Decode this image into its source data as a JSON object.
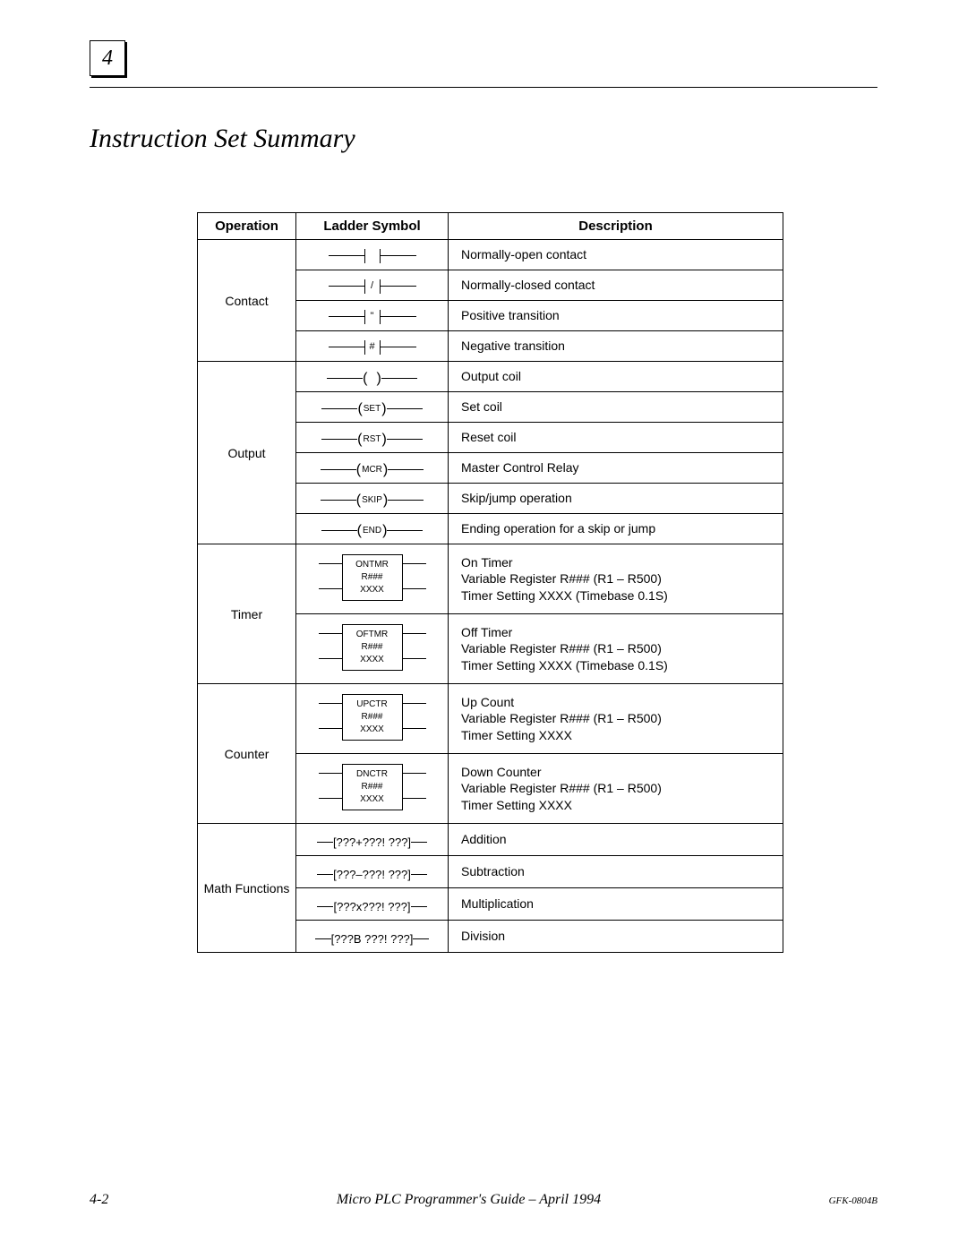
{
  "chapter_number": "4",
  "title": "Instruction Set Summary",
  "columns": [
    "Operation",
    "Ladder Symbol",
    "Description"
  ],
  "groups": [
    {
      "operation": "Contact",
      "rows": [
        {
          "kind": "contact",
          "inner": "",
          "desc": "Normally-open contact"
        },
        {
          "kind": "contact",
          "inner": "/",
          "desc": "Normally-closed contact"
        },
        {
          "kind": "contact",
          "inner": "\"",
          "desc": "Positive transition"
        },
        {
          "kind": "contact",
          "inner": "#",
          "desc": "Negative transition"
        }
      ]
    },
    {
      "operation": "Output",
      "rows": [
        {
          "kind": "coil",
          "inner": " ",
          "desc": "Output coil"
        },
        {
          "kind": "coil",
          "inner": "SET",
          "desc": "Set coil"
        },
        {
          "kind": "coil",
          "inner": "RST",
          "desc": "Reset coil"
        },
        {
          "kind": "coil",
          "inner": "MCR",
          "desc": "Master Control Relay"
        },
        {
          "kind": "coil",
          "inner": "SKIP",
          "desc": "Skip/jump operation"
        },
        {
          "kind": "coil",
          "inner": "END",
          "desc": "Ending operation for a skip or jump"
        }
      ]
    },
    {
      "operation": "Timer",
      "rows": [
        {
          "kind": "block",
          "l1": "ONTMR",
          "l2": "R###",
          "l3": "XXXX",
          "desc": "On Timer\nVariable Register R### (R1 – R500)\nTimer Setting XXXX (Timebase 0.1S)"
        },
        {
          "kind": "block",
          "l1": "OFTMR",
          "l2": "R###",
          "l3": "XXXX",
          "desc": "Off Timer\nVariable Register R### (R1 – R500)\nTimer Setting XXXX (Timebase 0.1S)"
        }
      ]
    },
    {
      "operation": "Counter",
      "rows": [
        {
          "kind": "block",
          "l1": "UPCTR",
          "l2": "R###",
          "l3": "XXXX",
          "desc": "Up Count\nVariable Register R### (R1 – R500)\nTimer Setting XXXX"
        },
        {
          "kind": "block",
          "l1": "DNCTR",
          "l2": "R###",
          "l3": "XXXX",
          "desc": "Down Counter\nVariable Register R### (R1 – R500)\nTimer Setting XXXX"
        }
      ]
    },
    {
      "operation": "Math Functions",
      "rows": [
        {
          "kind": "math",
          "expr": "[???+???!  ???]",
          "desc": "Addition"
        },
        {
          "kind": "math",
          "expr": "[???–???!  ???]",
          "desc": "Subtraction"
        },
        {
          "kind": "math",
          "expr": "[???x???!  ???]",
          "desc": "Multiplication"
        },
        {
          "kind": "math",
          "expr": "[???B ???!  ???]",
          "desc": "Division"
        }
      ]
    }
  ],
  "footer": {
    "page_num": "4-2",
    "book_title": "Micro PLC Programmer's Guide – April 1994",
    "doc_num": "GFK-0804B"
  }
}
